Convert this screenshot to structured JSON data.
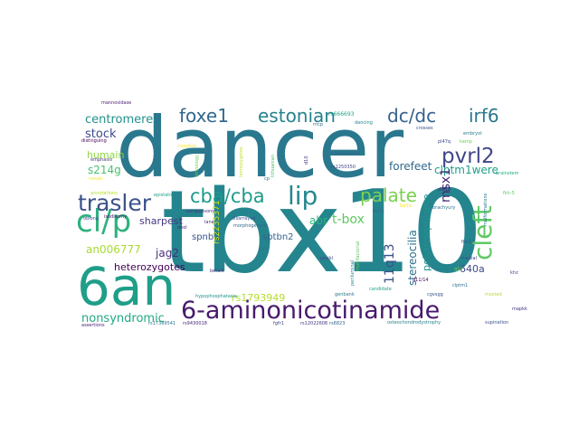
{
  "cloud": {
    "words": [
      {
        "text": "dancer",
        "color": "#2a788e"
      },
      {
        "text": "tbx10",
        "color": "#25858e"
      },
      {
        "text": "6an",
        "color": "#1f9e89"
      },
      {
        "text": "6-aminonicotinamide",
        "color": "#481a6c"
      },
      {
        "text": "cl/p",
        "color": "#2db27d"
      },
      {
        "text": "trasler",
        "color": "#3b528b"
      },
      {
        "text": "foxe1",
        "color": "#31688e"
      },
      {
        "text": "estonian",
        "color": "#26828e"
      },
      {
        "text": "dc/dc",
        "color": "#35608d"
      },
      {
        "text": "irf6",
        "color": "#2a788e"
      },
      {
        "text": "lip",
        "color": "#23888e"
      },
      {
        "text": "cba/cba",
        "color": "#1f9a8a"
      },
      {
        "text": "palate",
        "color": "#7ad151"
      },
      {
        "text": "pvrl2",
        "color": "#404688"
      },
      {
        "text": "cleft",
        "color": "#5ec962"
      },
      {
        "text": "centromere",
        "color": "#21918c"
      },
      {
        "text": "stock",
        "color": "#3e4989"
      },
      {
        "text": "humain",
        "color": "#8fd744"
      },
      {
        "text": "s214g",
        "color": "#4ac16d"
      },
      {
        "text": "forefeet",
        "color": "#31688e"
      },
      {
        "text": "clptm1were",
        "color": "#1f9e89"
      },
      {
        "text": "msx1",
        "color": "#482878"
      },
      {
        "text": "t-box",
        "color": "#5ec962"
      },
      {
        "text": "abr",
        "color": "#2db27d"
      },
      {
        "text": "sptbn2",
        "color": "#33638d"
      },
      {
        "text": "sharpest",
        "color": "#453781"
      },
      {
        "text": "jag2",
        "color": "#472d7b"
      },
      {
        "text": "spnb3",
        "color": "#3b528b"
      },
      {
        "text": "heterozygotes",
        "color": "#440154"
      },
      {
        "text": "an006777",
        "color": "#a8db34"
      },
      {
        "text": "nonsyndromic",
        "color": "#22a884"
      },
      {
        "text": "rs1793949",
        "color": "#b5de2b"
      },
      {
        "text": "11q13",
        "color": "#3b528b"
      },
      {
        "text": "stereocilia",
        "color": "#2c728e"
      },
      {
        "text": "polymorphisme",
        "color": "#21918c"
      },
      {
        "text": "640a",
        "color": "#3e4989"
      },
      {
        "text": "rs2235371",
        "color": "#d2e21b"
      },
      {
        "text": "mannosidase",
        "color": "#481f70"
      },
      {
        "text": "distinguing",
        "color": "#440154"
      },
      {
        "text": "emphasis",
        "color": "#46337f"
      },
      {
        "text": "morphol",
        "color": "#fde725"
      },
      {
        "text": "ethnology",
        "color": "#6ece58"
      },
      {
        "text": "homozygotes",
        "color": "#c2df23"
      },
      {
        "text": "lithuanian",
        "color": "#4ac16d"
      },
      {
        "text": "cp",
        "color": "#2a788e"
      },
      {
        "text": "d10",
        "color": "#453781"
      },
      {
        "text": "rs666693",
        "color": "#20a386"
      },
      {
        "text": "geographic",
        "color": "#31688e"
      },
      {
        "text": "rs2250350",
        "color": "#404688"
      },
      {
        "text": "crosses",
        "color": "#3b528b"
      },
      {
        "text": "embryol",
        "color": "#287c8e"
      },
      {
        "text": "pl47q",
        "color": "#3e4989"
      },
      {
        "text": "kamp",
        "color": "#6ece58"
      },
      {
        "text": "nasals",
        "color": "#fde725"
      },
      {
        "text": "epistatic",
        "color": "#1f9e89"
      },
      {
        "text": "d9/12",
        "color": "#482475"
      },
      {
        "text": "fkh-5",
        "color": "#5ec962"
      },
      {
        "text": "brachyury",
        "color": "#2c728e"
      },
      {
        "text": "isodisomy",
        "color": "#471164"
      },
      {
        "text": "oblong",
        "color": "#3e4989"
      },
      {
        "text": "comparisons",
        "color": "#472c7a"
      },
      {
        "text": "disarrayed",
        "color": "#3b528b"
      },
      {
        "text": "morphogenetic",
        "color": "#31688e"
      },
      {
        "text": "defy",
        "color": "#2a788e"
      },
      {
        "text": "lane",
        "color": "#482878"
      },
      {
        "text": "betaiii",
        "color": "#453781"
      },
      {
        "text": "paubl",
        "color": "#404688"
      },
      {
        "text": "genbank",
        "color": "#2a788e"
      },
      {
        "text": "periluminal",
        "color": "#26828e"
      },
      {
        "text": "cgvsgg",
        "color": "#3b528b"
      },
      {
        "text": "candidate",
        "color": "#1f9e89"
      },
      {
        "text": "d11/14",
        "color": "#440154"
      },
      {
        "text": "clptm1",
        "color": "#2c728e"
      },
      {
        "text": "mapkk",
        "color": "#453781"
      },
      {
        "text": "hypophosphatasia",
        "color": "#21918c"
      },
      {
        "text": "rs17389541",
        "color": "#2a788e"
      },
      {
        "text": "rs9430018",
        "color": "#482878"
      },
      {
        "text": "fgfr1",
        "color": "#3e4989"
      },
      {
        "text": "rs12022608",
        "color": "#453781"
      },
      {
        "text": "rs6823",
        "color": "#31688e"
      },
      {
        "text": "osteochondrodystrophy",
        "color": "#26828e"
      },
      {
        "text": "supination",
        "color": "#3b528b"
      },
      {
        "text": "assertions",
        "color": "#482475"
      },
      {
        "text": "multifactorial",
        "color": "#5ec962"
      },
      {
        "text": "mosted",
        "color": "#b5de2b"
      },
      {
        "text": "q10",
        "color": "#6ece58"
      },
      {
        "text": "medial",
        "color": "#404688"
      },
      {
        "text": "fbx17",
        "color": "#3b528b"
      },
      {
        "text": "malformations",
        "color": "#2a788e"
      },
      {
        "text": "dancing",
        "color": "#26828e"
      },
      {
        "text": "baltic",
        "color": "#fde725"
      },
      {
        "text": "pvrl1",
        "color": "#31688e"
      },
      {
        "text": "khz",
        "color": "#3e4989"
      },
      {
        "text": "annotations",
        "color": "#b5de2b"
      },
      {
        "text": "deol",
        "color": "#482878"
      },
      {
        "text": "rncp",
        "color": "#2c728e"
      },
      {
        "text": "brainstem",
        "color": "#22a884"
      }
    ]
  }
}
